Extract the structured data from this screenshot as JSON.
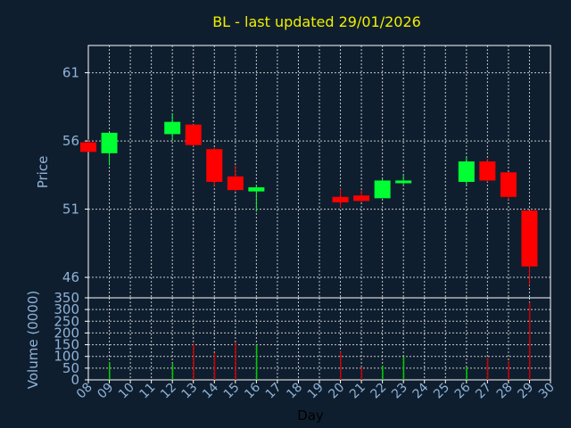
{
  "title": "BL - last updated 29/01/2026",
  "colors": {
    "background": "#0f1e2e",
    "plot_border": "#ffffff",
    "grid": "#ffffff",
    "text": "#8fb3d9",
    "title": "#f0f000",
    "up": "#00ff33",
    "down": "#ff0000",
    "volume_up": "#00cc00",
    "volume_down": "#cc0000"
  },
  "chart_data": [
    {
      "type": "candlestick",
      "ylabel": "Price",
      "ylim": [
        44.5,
        63.0
      ],
      "yticks": [
        46,
        51,
        56,
        61
      ],
      "xlim": [
        8,
        30
      ],
      "grid": true,
      "candles": [
        {
          "day": 8,
          "open": 55.9,
          "high": 56.1,
          "low": 55.2,
          "close": 55.2
        },
        {
          "day": 9,
          "open": 55.1,
          "high": 56.6,
          "low": 54.2,
          "close": 56.6
        },
        {
          "day": 12,
          "open": 56.5,
          "high": 58.0,
          "low": 56.0,
          "close": 57.4
        },
        {
          "day": 13,
          "open": 57.2,
          "high": 57.2,
          "low": 55.6,
          "close": 55.7
        },
        {
          "day": 14,
          "open": 55.4,
          "high": 55.5,
          "low": 52.7,
          "close": 53.0
        },
        {
          "day": 15,
          "open": 53.4,
          "high": 54.2,
          "low": 52.3,
          "close": 52.4
        },
        {
          "day": 16,
          "open": 52.3,
          "high": 52.8,
          "low": 50.8,
          "close": 52.6
        },
        {
          "day": 20,
          "open": 51.9,
          "high": 52.5,
          "low": 51.1,
          "close": 51.5
        },
        {
          "day": 21,
          "open": 52.0,
          "high": 52.4,
          "low": 51.5,
          "close": 51.6
        },
        {
          "day": 22,
          "open": 51.8,
          "high": 53.2,
          "low": 51.8,
          "close": 53.1
        },
        {
          "day": 23,
          "open": 52.9,
          "high": 53.5,
          "low": 52.8,
          "close": 53.1
        },
        {
          "day": 26,
          "open": 53.0,
          "high": 54.8,
          "low": 52.8,
          "close": 54.5
        },
        {
          "day": 27,
          "open": 54.5,
          "high": 54.7,
          "low": 53.0,
          "close": 53.1
        },
        {
          "day": 28,
          "open": 53.7,
          "high": 53.7,
          "low": 51.7,
          "close": 51.9
        },
        {
          "day": 29,
          "open": 50.9,
          "high": 50.9,
          "low": 45.4,
          "close": 46.8
        }
      ]
    },
    {
      "type": "bar",
      "ylabel": "Volume (0000)",
      "xlabel": "Day",
      "ylim": [
        0,
        350
      ],
      "yticks": [
        0,
        50,
        100,
        150,
        200,
        250,
        300,
        350
      ],
      "xlim": [
        8,
        30
      ],
      "xticks": [
        "08",
        "09",
        "10",
        "11",
        "12",
        "13",
        "14",
        "15",
        "16",
        "17",
        "18",
        "19",
        "20",
        "21",
        "22",
        "23",
        "24",
        "25",
        "26",
        "27",
        "28",
        "29",
        "30"
      ],
      "grid": true,
      "bars": [
        {
          "day": 9,
          "value": 75,
          "direction": "up"
        },
        {
          "day": 12,
          "value": 70,
          "direction": "up"
        },
        {
          "day": 13,
          "value": 155,
          "direction": "down"
        },
        {
          "day": 14,
          "value": 115,
          "direction": "down"
        },
        {
          "day": 15,
          "value": 160,
          "direction": "down"
        },
        {
          "day": 16,
          "value": 150,
          "direction": "up"
        },
        {
          "day": 20,
          "value": 120,
          "direction": "down"
        },
        {
          "day": 21,
          "value": 55,
          "direction": "down"
        },
        {
          "day": 22,
          "value": 60,
          "direction": "up"
        },
        {
          "day": 23,
          "value": 100,
          "direction": "up"
        },
        {
          "day": 26,
          "value": 55,
          "direction": "up"
        },
        {
          "day": 27,
          "value": 95,
          "direction": "down"
        },
        {
          "day": 28,
          "value": 80,
          "direction": "down"
        },
        {
          "day": 29,
          "value": 330,
          "direction": "down"
        }
      ]
    }
  ]
}
